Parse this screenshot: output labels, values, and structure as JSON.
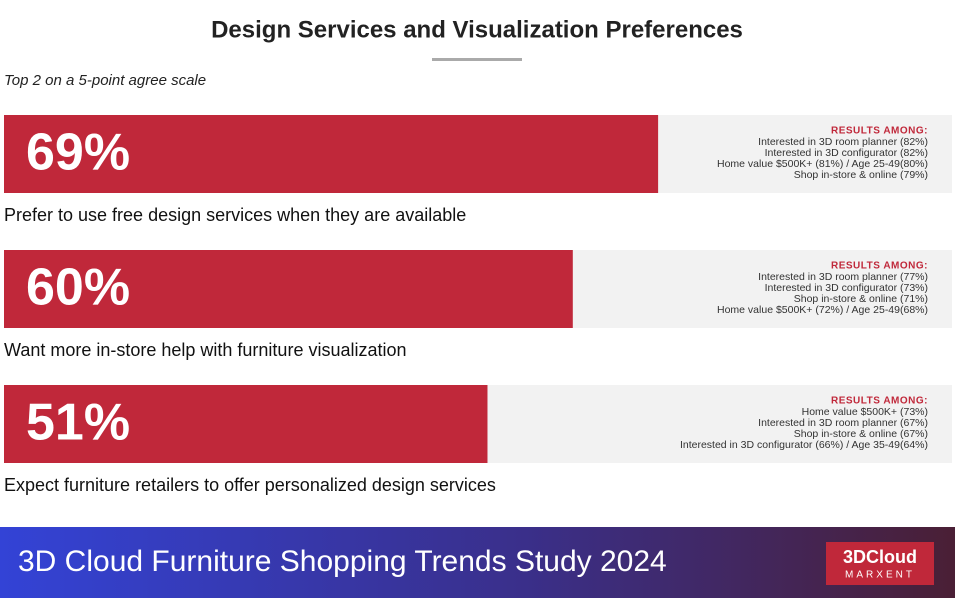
{
  "chart_data": {
    "type": "bar",
    "title": "Design Services and Visualization Preferences",
    "subtitle": "Top 2 on a 5-point agree scale",
    "categories": [
      "Prefer to use free design services when they are available",
      "Want more in-store help with furniture visualization",
      "Expect furniture retailers to offer personalized design services"
    ],
    "values": [
      69,
      60,
      51
    ],
    "value_labels": [
      "69%",
      "60%",
      "51%"
    ],
    "color": "#c0283a",
    "xlim": [
      0,
      100
    ],
    "notes": [
      {
        "heading": "RESULTS AMONG:",
        "lines": [
          "Interested in 3D room planner (82%)",
          "Interested in 3D configurator (82%)",
          "Home value $500K+ (81%) / Age 25-49(80%)",
          "Shop in-store & online (79%)"
        ]
      },
      {
        "heading": "RESULTS AMONG:",
        "lines": [
          "Interested in 3D room planner (77%)",
          "Interested in 3D configurator (73%)",
          "Shop in-store & online (71%)",
          "Home value $500K+ (72%) / Age 25-49(68%)"
        ]
      },
      {
        "heading": "RESULTS AMONG:",
        "lines": [
          "Home value $500K+ (73%)",
          "Interested in 3D room planner (67%)",
          "Shop in-store & online (67%)",
          "Interested in 3D configurator (66%) / Age 35-49(64%)"
        ]
      }
    ]
  },
  "footer": {
    "title": "3D Cloud Furniture Shopping Trends Study 2024",
    "logo": "3DCloud",
    "logo_sub": "MARXENT"
  }
}
